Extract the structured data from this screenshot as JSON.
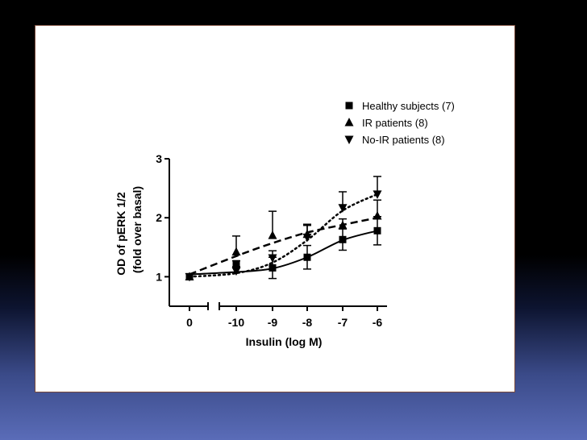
{
  "chart_data": {
    "type": "scatter",
    "title": "",
    "xlabel": "Insulin (log M)",
    "ylabel_line1": "OD of pERK 1/2",
    "ylabel_line2": "(fold over basal)",
    "x_ticks": [
      "0",
      "-10",
      "-9",
      "-8",
      "-7",
      "-6"
    ],
    "y_ticks": [
      1,
      2,
      3
    ],
    "ylim": [
      0.5,
      3
    ],
    "x_axis_break": "between 0 and -10",
    "grid": false,
    "legend_position": "top-right",
    "series": [
      {
        "name": "Healthy subjects (7)",
        "marker": "square",
        "line_style": "solid",
        "points": [
          {
            "x": "0",
            "y": 1.0,
            "err": 0
          },
          {
            "x": "-10",
            "y": 1.22,
            "err": 0.05
          },
          {
            "x": "-9",
            "y": 1.15,
            "err": 0.18
          },
          {
            "x": "-8",
            "y": 1.33,
            "err": 0.2
          },
          {
            "x": "-7",
            "y": 1.63,
            "err": 0.18
          },
          {
            "x": "-6",
            "y": 1.78,
            "err": 0.24
          }
        ],
        "fit": [
          1.04,
          1.08,
          1.14,
          1.33,
          1.62,
          1.78
        ]
      },
      {
        "name": "IR patients (8)",
        "marker": "triangle-up",
        "line_style": "dashed",
        "points": [
          {
            "x": "0",
            "y": 1.0,
            "err": 0
          },
          {
            "x": "-10",
            "y": 1.42,
            "err": 0.27
          },
          {
            "x": "-9",
            "y": 1.7,
            "err": 0.41
          },
          {
            "x": "-8",
            "y": 1.72,
            "err": 0.17
          },
          {
            "x": "-7",
            "y": 1.87,
            "err": 0.11
          },
          {
            "x": "-6",
            "y": 2.03,
            "err": 0.27
          }
        ],
        "fit": [
          1.04,
          1.35,
          1.57,
          1.75,
          1.88,
          2.0
        ]
      },
      {
        "name": "No-IR patients (8)",
        "marker": "triangle-down",
        "line_style": "dotted",
        "points": [
          {
            "x": "0",
            "y": 1.0,
            "err": 0
          },
          {
            "x": "-10",
            "y": 1.1,
            "err": 0.05
          },
          {
            "x": "-9",
            "y": 1.32,
            "err": 0.12
          },
          {
            "x": "-8",
            "y": 1.67,
            "err": 0.2
          },
          {
            "x": "-7",
            "y": 2.17,
            "err": 0.27
          },
          {
            "x": "-6",
            "y": 2.4,
            "err": 0.3
          }
        ],
        "fit": [
          1.0,
          1.06,
          1.24,
          1.62,
          2.12,
          2.4
        ]
      }
    ]
  }
}
